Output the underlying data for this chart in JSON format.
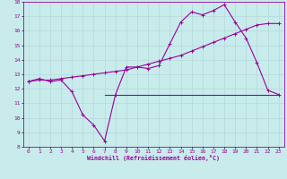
{
  "bg_color": "#c8ecec",
  "line_color": "#990099",
  "grid_color": "#b8dcdc",
  "xlabel": "Windchill (Refroidissement éolien,°C)",
  "xlim": [
    -0.5,
    23.5
  ],
  "ylim": [
    8,
    18
  ],
  "xticks": [
    0,
    1,
    2,
    3,
    4,
    5,
    6,
    7,
    8,
    9,
    10,
    11,
    12,
    13,
    14,
    15,
    16,
    17,
    18,
    19,
    20,
    21,
    22,
    23
  ],
  "yticks": [
    8,
    9,
    10,
    11,
    12,
    13,
    14,
    15,
    16,
    17,
    18
  ],
  "curve1_x": [
    0,
    1,
    2,
    3,
    4,
    5,
    6,
    7,
    8,
    9,
    10,
    11,
    12,
    13,
    14,
    15,
    16,
    17,
    18,
    19,
    20,
    21,
    22,
    23
  ],
  "curve1_y": [
    12.5,
    12.7,
    12.5,
    12.6,
    11.8,
    10.2,
    9.5,
    8.4,
    11.6,
    13.5,
    13.5,
    13.4,
    13.6,
    15.1,
    16.6,
    17.3,
    17.1,
    17.4,
    17.8,
    16.6,
    15.5,
    13.8,
    11.9,
    11.6
  ],
  "curve2_x": [
    0,
    1,
    2,
    3,
    4,
    5,
    6,
    7,
    8,
    9,
    10,
    11,
    12,
    13,
    14,
    15,
    16,
    17,
    18,
    19,
    20,
    21,
    22,
    23
  ],
  "curve2_y": [
    12.5,
    12.6,
    12.6,
    12.7,
    12.8,
    12.9,
    13.0,
    13.1,
    13.2,
    13.3,
    13.5,
    13.7,
    13.9,
    14.1,
    14.3,
    14.6,
    14.9,
    15.2,
    15.5,
    15.8,
    16.1,
    16.4,
    16.5,
    16.5
  ],
  "curve3_x": [
    7,
    23
  ],
  "curve3_y": [
    11.6,
    11.6
  ]
}
